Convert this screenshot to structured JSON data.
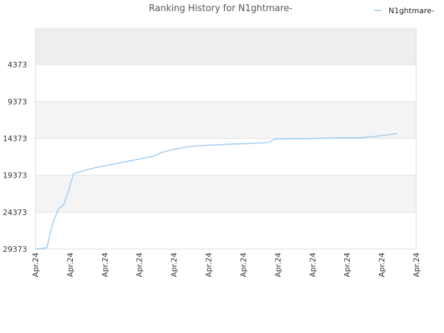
{
  "chart_data": {
    "type": "line",
    "title": "Ranking History for N1ghtmare-",
    "xlabel": "",
    "ylabel": "",
    "y_reversed": true,
    "ylim": [
      29373,
      -627
    ],
    "y_ticks": [
      4373,
      9373,
      14373,
      19373,
      24373,
      29373
    ],
    "y_tick_labels": [
      "4373",
      "9373",
      "14373",
      "19373",
      "24373",
      "29373"
    ],
    "x_tick_labels": [
      "Apr.24",
      "Apr.24",
      "Apr.24",
      "Apr.24",
      "Apr.24",
      "Apr.24",
      "Apr.24",
      "Apr.24",
      "Apr.24",
      "Apr.24",
      "Apr.24",
      "Apr.24"
    ],
    "grid": true,
    "legend_position": "top-right",
    "colors": {
      "line": "#92c5f0",
      "band": "#eeeeee",
      "band_alt": "#f4f4f4",
      "grid": "#e2e2e2",
      "axis": "#dcdcdc"
    },
    "series": [
      {
        "name": "N1ghtmare-",
        "x": [
          0.0,
          0.03,
          0.045,
          0.06,
          0.075,
          0.085,
          0.1,
          0.13,
          0.16,
          0.19,
          0.22,
          0.25,
          0.28,
          0.31,
          0.33,
          0.36,
          0.39,
          0.42,
          0.45,
          0.48,
          0.51,
          0.55,
          0.58,
          0.61,
          0.63,
          0.65,
          0.68,
          0.71,
          0.75,
          0.8,
          0.85,
          0.9,
          0.925,
          0.95
        ],
        "y": [
          29373,
          29200,
          26000,
          24000,
          23300,
          21800,
          19200,
          18700,
          18300,
          18000,
          17700,
          17400,
          17100,
          16800,
          16300,
          15900,
          15600,
          15400,
          15300,
          15250,
          15150,
          15100,
          15000,
          14950,
          14450,
          14450,
          14400,
          14400,
          14350,
          14300,
          14300,
          14050,
          13900,
          13700
        ]
      }
    ]
  }
}
